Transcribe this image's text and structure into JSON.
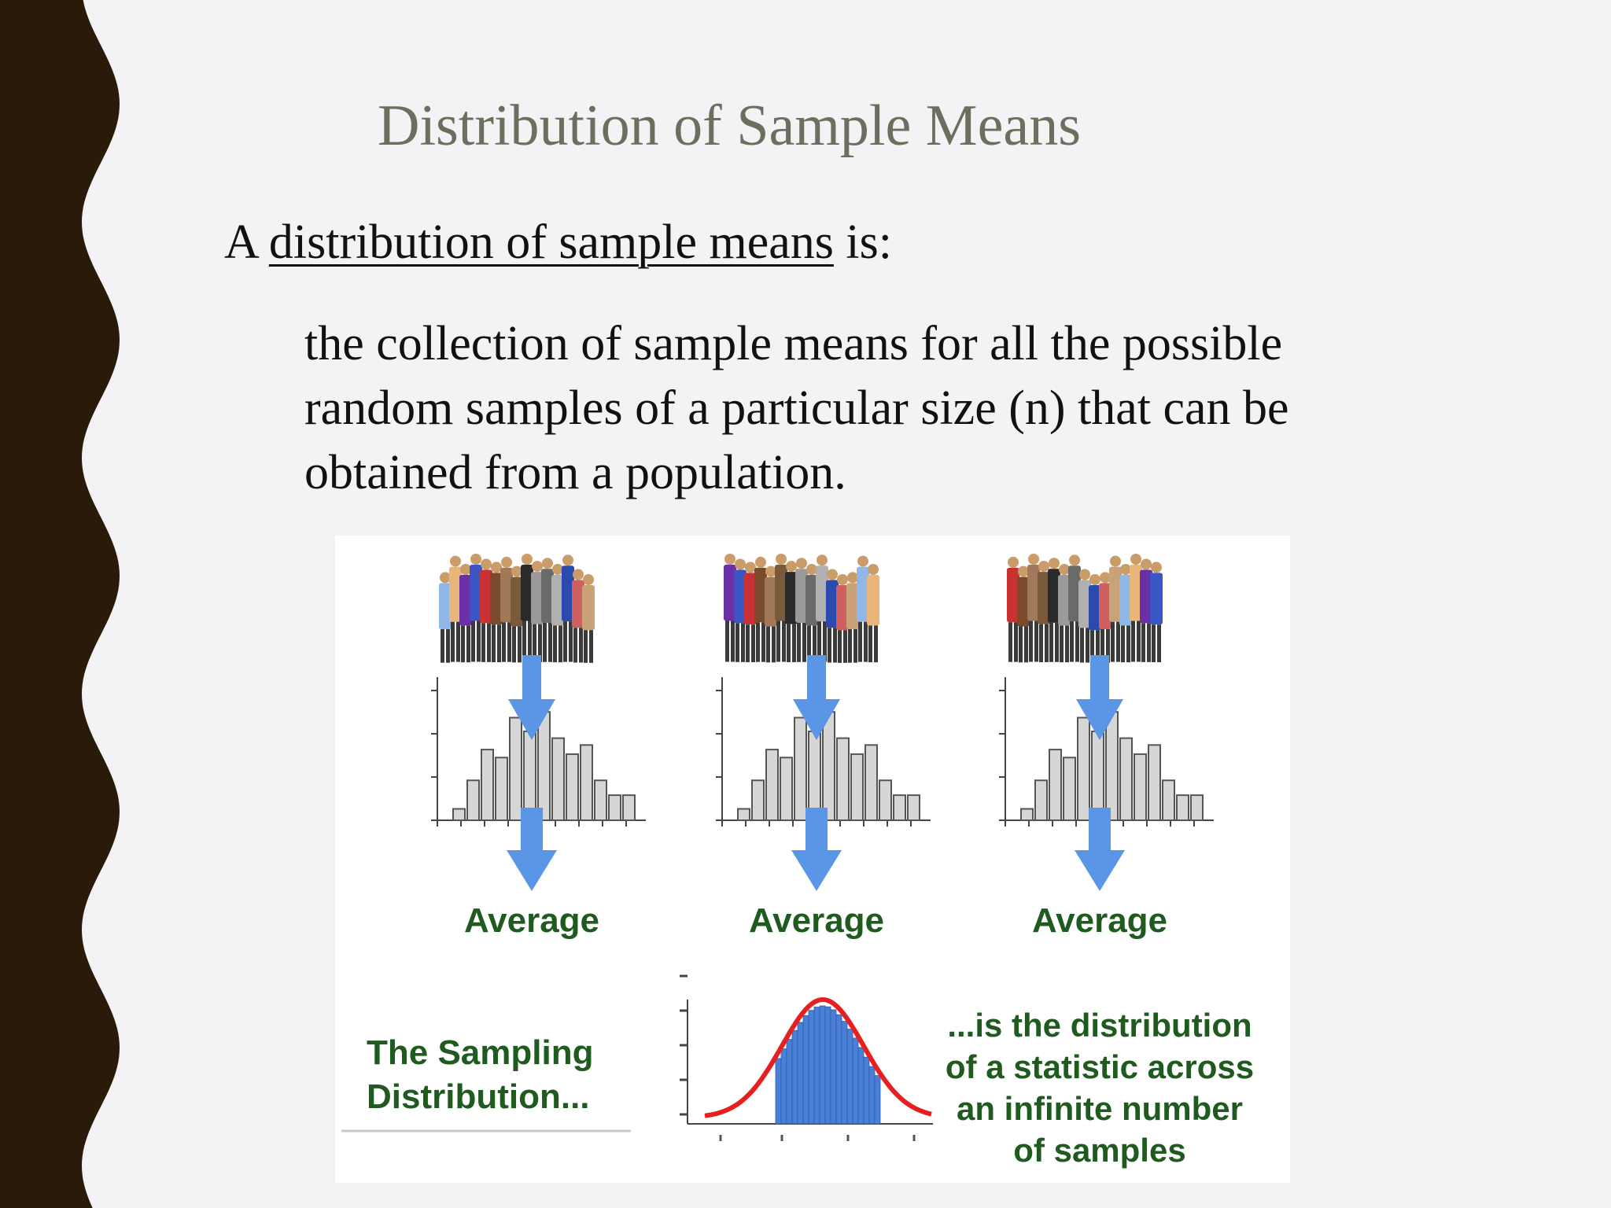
{
  "slide": {
    "title": "Distribution of Sample Means",
    "lead": {
      "prefix": "A",
      "term": "distribution of sample means",
      "suffix": "is:"
    },
    "definition": "the collection of sample means for all the possible random samples of a particular size (n) that can be obtained from a population."
  },
  "figure": {
    "average_labels": [
      "Average",
      "Average",
      "Average"
    ],
    "sampling_label": "The Sampling Distribution...",
    "statistic_caption": "...is the distribution of a statistic across an infinite number of samples",
    "arrow_color": "#5b95e6",
    "curve_color": "#e62020",
    "bar_color": "#4a7fd6"
  },
  "theme": {
    "left_border": "#2a1a0a",
    "right_bar": "#f2ae2a"
  }
}
